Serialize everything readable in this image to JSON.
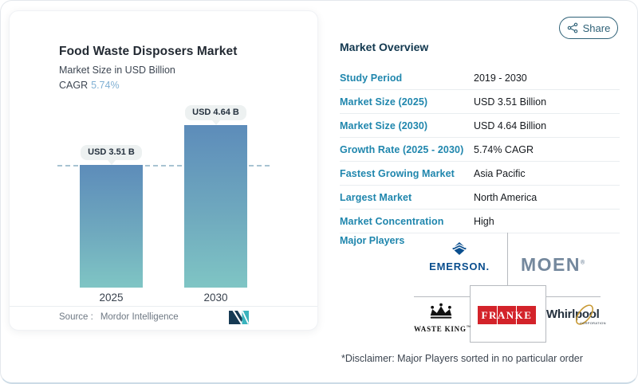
{
  "header": {
    "share_label": "Share"
  },
  "chart_card": {
    "title": "Food Waste Disposers Market",
    "subtitle": "Market Size in USD Billion",
    "cagr_label": "CAGR",
    "cagr_value": "5.74%",
    "source_label": "Source :",
    "source_value": "Mordor Intelligence"
  },
  "chart_data": {
    "type": "bar",
    "title": "Food Waste Disposers Market",
    "subtitle": "Market Size in USD Billion",
    "unit": "USD Billion",
    "categories": [
      "2025",
      "2030"
    ],
    "values": [
      3.51,
      4.64
    ],
    "bar_labels": [
      "USD 3.51 B",
      "USD 4.64 B"
    ],
    "cagr": "5.74%",
    "ylim": [
      0,
      5
    ],
    "grid": false,
    "legend": "none",
    "dashed_reference_value": 3.51,
    "bar_gradient": [
      "#5d8cba",
      "#7fc5c4"
    ]
  },
  "overview": {
    "heading": "Market Overview",
    "rows": [
      {
        "label": "Study Period",
        "value": "2019 - 2030"
      },
      {
        "label": "Market Size (2025)",
        "value": "USD 3.51 Billion"
      },
      {
        "label": "Market Size (2030)",
        "value": "USD 4.64 Billion"
      },
      {
        "label": "Growth Rate (2025 - 2030)",
        "value": "5.74% CAGR"
      },
      {
        "label": "Fastest Growing Market",
        "value": "Asia Pacific"
      },
      {
        "label": "Largest Market",
        "value": "North America"
      },
      {
        "label": "Market Concentration",
        "value": "High"
      }
    ],
    "major_players_label": "Major Players",
    "players": {
      "emerson": "EMERSON.",
      "moen": "MOEN",
      "moen_reg": "®",
      "waste_king": "WASTE KING",
      "waste_king_tm": "™",
      "franke": "FRANKE",
      "whirlpool": "Whirlpool",
      "whirlpool_sub": "CORPORATION"
    },
    "disclaimer": "*Disclaimer: Major Players sorted in no particular order"
  },
  "icons": [
    "share-nodes-icon",
    "mordor-intelligence-logo",
    "emerson-diamond-icon",
    "waste-king-crown-icon",
    "whirlpool-swirl-icon"
  ],
  "colors": {
    "accent_teal": "#1f86ad",
    "heading_navy": "#12384f",
    "cagr_blue": "#80b0d3",
    "share_teal": "#2e6177",
    "bar_top": "#5d8cba",
    "bar_bottom": "#7fc5c4",
    "badge_bg": "#edf1f1",
    "emerson_blue": "#0a4e8e",
    "moen_steel": "#74889d",
    "franke_red": "#d3232a",
    "whirlpool_navy": "#25313e",
    "whirlpool_gold": "#c99a35"
  }
}
